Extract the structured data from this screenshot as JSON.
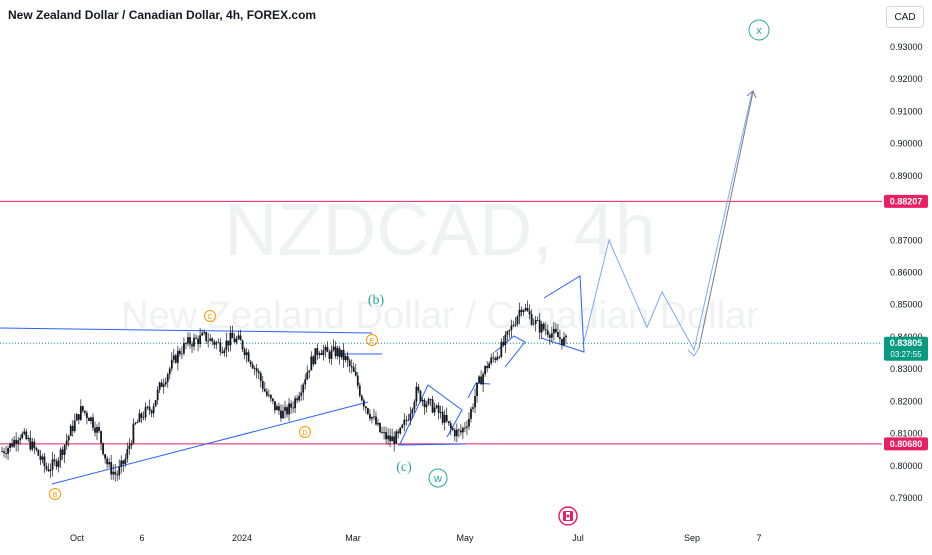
{
  "header": {
    "title": "New Zealand Dollar / Canadian Dollar, 4h, FOREX.com",
    "currency": "CAD"
  },
  "watermark": {
    "symbol": "NZDCAD, 4h",
    "name": "New Zealand Dollar / Canadian Dollar"
  },
  "colors": {
    "candle": "#131722",
    "blue_lines": "#2962ff",
    "projection": "#7fa9f5",
    "red_level": "#e91e63",
    "green": "#26a69a",
    "orange": "#ff9800",
    "current_price": "#089981"
  },
  "price_badges": {
    "upper_level": "0.88207",
    "current_price": "0.83805",
    "countdown": "03:27:55",
    "lower_level": "0.80680"
  },
  "wave_labels": {
    "b": "(b)",
    "c": "(c)",
    "w": "w",
    "x": "x",
    "C": "C",
    "D": "D",
    "E": "E",
    "B": "B"
  },
  "chart_data": {
    "type": "line",
    "title": "New Zealand Dollar / Canadian Dollar, 4h, FOREX.com",
    "ylabel": "",
    "xlabel": "",
    "ylim": [
      0.7855,
      0.9405
    ],
    "y_ticks": [
      "0.93000",
      "0.92000",
      "0.91000",
      "0.90000",
      "0.89000",
      "0.87000",
      "0.86000",
      "0.85000",
      "0.84000",
      "0.83000",
      "0.82000",
      "0.81000",
      "0.80000",
      "0.79000"
    ],
    "x_ticks": [
      "Oct",
      "6",
      "2024",
      "Mar",
      "May",
      "Jul",
      "Sep",
      "7"
    ],
    "horizontal_levels": [
      0.88207,
      0.8068
    ],
    "current_price": 0.83805,
    "series": [
      {
        "values": [
          0.8045,
          0.8065,
          0.81,
          0.8075,
          0.804,
          0.799,
          0.8005,
          0.806,
          0.812,
          0.8175,
          0.815,
          0.81,
          0.8,
          0.797,
          0.802,
          0.812,
          0.816,
          0.818,
          0.825,
          0.83,
          0.835,
          0.838,
          0.839,
          0.84,
          0.8385,
          0.837,
          0.8395,
          0.8385,
          0.834,
          0.829,
          0.822,
          0.818,
          0.816,
          0.819,
          0.825,
          0.832,
          0.8365,
          0.8345,
          0.8355,
          0.833,
          0.828,
          0.82,
          0.815,
          0.81,
          0.808,
          0.809,
          0.815,
          0.823,
          0.82,
          0.818,
          0.815,
          0.811,
          0.81,
          0.815,
          0.825,
          0.831,
          0.834,
          0.838,
          0.844,
          0.85,
          0.846,
          0.843,
          0.842,
          0.84,
          0.8385
        ]
      }
    ],
    "projection": [
      0.8385,
      0.87,
      0.843,
      0.854,
      0.836,
      0.916
    ]
  }
}
